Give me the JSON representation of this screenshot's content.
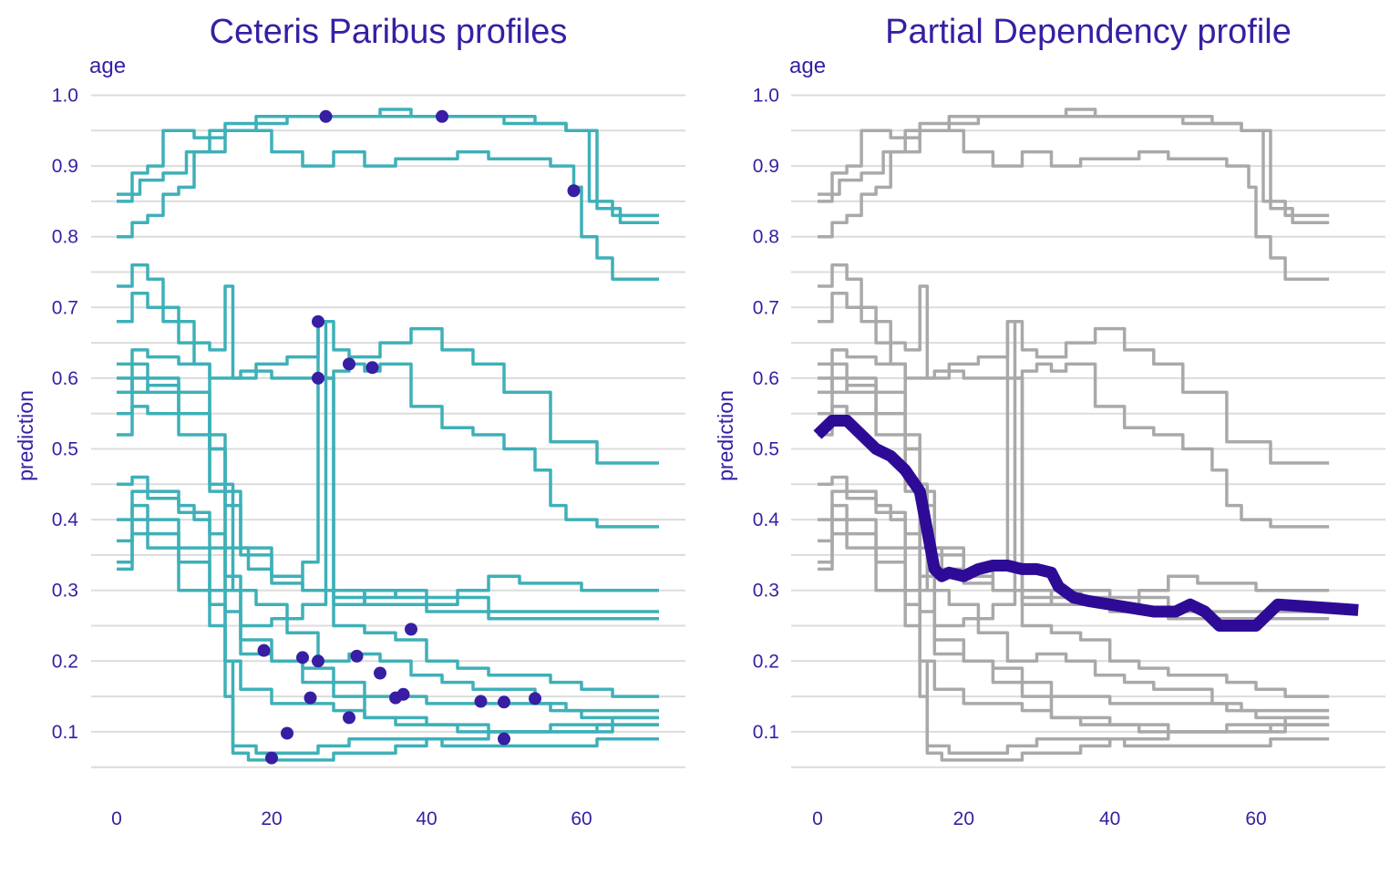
{
  "colors": {
    "text": "#371ea3",
    "cp_line": "#3eb0b8",
    "observation": "#371ea3",
    "pd_background": "#a9a9a9",
    "pd_line": "#2e0b96",
    "grid": "#dcdcdc"
  },
  "chart_data": [
    {
      "type": "line",
      "title": "Ceteris Paribus profiles",
      "facet_label": "age",
      "xlabel": "",
      "ylabel": "prediction",
      "xlim": [
        -3,
        70
      ],
      "ylim": [
        0.05,
        1.0
      ],
      "x_ticks": [
        0,
        20,
        40,
        60
      ],
      "y_ticks": [
        0.1,
        0.2,
        0.3,
        0.4,
        0.5,
        0.6,
        0.7,
        0.8,
        0.9,
        1.0
      ],
      "grid": true,
      "series": [
        {
          "x": [
            0,
            2,
            4,
            6,
            8,
            10,
            14,
            18,
            22,
            26,
            30,
            34,
            38,
            42,
            46,
            50,
            54,
            58,
            60,
            61,
            64,
            70
          ],
          "y": [
            0.85,
            0.89,
            0.9,
            0.95,
            0.95,
            0.94,
            0.96,
            0.97,
            0.97,
            0.97,
            0.97,
            0.97,
            0.97,
            0.97,
            0.97,
            0.96,
            0.96,
            0.95,
            0.95,
            0.85,
            0.83,
            0.83
          ]
        },
        {
          "x": [
            0,
            2,
            4,
            6,
            8,
            10,
            14,
            18,
            22,
            26,
            30,
            34,
            38,
            42,
            46,
            50,
            54,
            58,
            60,
            62,
            65,
            70
          ],
          "y": [
            0.8,
            0.82,
            0.83,
            0.86,
            0.87,
            0.92,
            0.95,
            0.96,
            0.97,
            0.97,
            0.97,
            0.98,
            0.97,
            0.97,
            0.97,
            0.97,
            0.96,
            0.95,
            0.95,
            0.84,
            0.82,
            0.82
          ]
        },
        {
          "x": [
            0,
            3,
            6,
            9,
            12,
            16,
            20,
            24,
            28,
            32,
            36,
            40,
            44,
            48,
            52,
            56,
            59,
            60,
            62,
            64,
            70
          ],
          "y": [
            0.86,
            0.88,
            0.89,
            0.92,
            0.95,
            0.95,
            0.92,
            0.9,
            0.92,
            0.9,
            0.91,
            0.91,
            0.92,
            0.91,
            0.91,
            0.9,
            0.87,
            0.8,
            0.77,
            0.74,
            0.74
          ]
        },
        {
          "x": [
            0,
            2,
            4,
            8,
            12,
            14,
            15,
            18,
            22,
            26,
            28,
            30,
            34,
            38,
            42,
            46,
            50,
            56,
            62,
            70
          ],
          "y": [
            0.68,
            0.72,
            0.7,
            0.65,
            0.64,
            0.73,
            0.6,
            0.62,
            0.63,
            0.68,
            0.64,
            0.63,
            0.65,
            0.67,
            0.64,
            0.62,
            0.58,
            0.51,
            0.48,
            0.48
          ]
        },
        {
          "x": [
            0,
            2,
            4,
            8,
            12,
            16,
            20,
            24,
            28,
            30,
            32,
            34,
            38,
            42,
            46,
            50,
            54,
            56,
            58,
            62,
            70
          ],
          "y": [
            0.62,
            0.64,
            0.63,
            0.62,
            0.6,
            0.61,
            0.6,
            0.6,
            0.61,
            0.62,
            0.61,
            0.62,
            0.56,
            0.53,
            0.52,
            0.5,
            0.47,
            0.42,
            0.4,
            0.39,
            0.39
          ]
        },
        {
          "x": [
            0,
            2,
            4,
            6,
            10,
            12,
            14,
            17,
            20,
            24,
            26,
            27,
            28,
            32,
            36,
            40,
            44,
            48,
            52,
            56,
            60,
            64,
            70
          ],
          "y": [
            0.73,
            0.76,
            0.74,
            0.68,
            0.62,
            0.52,
            0.36,
            0.33,
            0.32,
            0.34,
            0.68,
            0.6,
            0.3,
            0.29,
            0.3,
            0.29,
            0.3,
            0.32,
            0.31,
            0.31,
            0.3,
            0.3,
            0.3
          ]
        },
        {
          "x": [
            0,
            2,
            4,
            8,
            12,
            14,
            16,
            20,
            24,
            27,
            28,
            32,
            36,
            40,
            44,
            48,
            52,
            56,
            60,
            64,
            70
          ],
          "y": [
            0.58,
            0.62,
            0.6,
            0.58,
            0.5,
            0.32,
            0.25,
            0.26,
            0.28,
            0.6,
            0.25,
            0.24,
            0.23,
            0.2,
            0.19,
            0.18,
            0.18,
            0.17,
            0.16,
            0.15,
            0.15
          ]
        },
        {
          "x": [
            0,
            2,
            4,
            8,
            12,
            15,
            18,
            22,
            26,
            30,
            34,
            38,
            42,
            46,
            50,
            54,
            58,
            62,
            70
          ],
          "y": [
            0.52,
            0.56,
            0.55,
            0.52,
            0.45,
            0.3,
            0.28,
            0.24,
            0.2,
            0.21,
            0.2,
            0.18,
            0.17,
            0.16,
            0.16,
            0.14,
            0.13,
            0.13,
            0.13
          ]
        },
        {
          "x": [
            0,
            2,
            4,
            8,
            12,
            16,
            20,
            24,
            28,
            32,
            36,
            40,
            44,
            48,
            52,
            56,
            60,
            63,
            70
          ],
          "y": [
            0.6,
            0.58,
            0.59,
            0.55,
            0.44,
            0.35,
            0.31,
            0.3,
            0.29,
            0.28,
            0.28,
            0.27,
            0.27,
            0.26,
            0.26,
            0.26,
            0.26,
            0.26,
            0.26
          ]
        },
        {
          "x": [
            0,
            2,
            4,
            8,
            12,
            14,
            16,
            20,
            24,
            28,
            32,
            36,
            40,
            44,
            48,
            52,
            56,
            60,
            64,
            70
          ],
          "y": [
            0.55,
            0.6,
            0.58,
            0.55,
            0.5,
            0.42,
            0.36,
            0.32,
            0.3,
            0.28,
            0.3,
            0.29,
            0.28,
            0.29,
            0.27,
            0.27,
            0.27,
            0.27,
            0.27,
            0.27
          ]
        },
        {
          "x": [
            0,
            2,
            4,
            8,
            10,
            12,
            14,
            16,
            20,
            24,
            28,
            32,
            36,
            40,
            44,
            48,
            52,
            56,
            60,
            64,
            70
          ],
          "y": [
            0.45,
            0.46,
            0.44,
            0.42,
            0.4,
            0.36,
            0.27,
            0.21,
            0.2,
            0.19,
            0.17,
            0.15,
            0.15,
            0.14,
            0.14,
            0.14,
            0.14,
            0.13,
            0.12,
            0.12,
            0.12
          ]
        },
        {
          "x": [
            0,
            2,
            4,
            8,
            12,
            14,
            16,
            20,
            24,
            28,
            32,
            36,
            40,
            44,
            48,
            52,
            56,
            60,
            62,
            70
          ],
          "y": [
            0.4,
            0.44,
            0.43,
            0.41,
            0.38,
            0.3,
            0.23,
            0.2,
            0.17,
            0.15,
            0.12,
            0.11,
            0.11,
            0.1,
            0.1,
            0.1,
            0.1,
            0.1,
            0.11,
            0.11
          ]
        },
        {
          "x": [
            0,
            2,
            4,
            8,
            12,
            14,
            15,
            18,
            22,
            26,
            30,
            34,
            38,
            42,
            46,
            50,
            54,
            58,
            62,
            70
          ],
          "y": [
            0.37,
            0.42,
            0.4,
            0.36,
            0.3,
            0.2,
            0.08,
            0.07,
            0.07,
            0.08,
            0.09,
            0.09,
            0.09,
            0.08,
            0.08,
            0.08,
            0.08,
            0.08,
            0.09,
            0.09
          ]
        },
        {
          "x": [
            0,
            2,
            4,
            8,
            12,
            14,
            15,
            17,
            20,
            24,
            28,
            32,
            36,
            40,
            44,
            48,
            52,
            56,
            60,
            64,
            70
          ],
          "y": [
            0.34,
            0.38,
            0.36,
            0.3,
            0.25,
            0.15,
            0.07,
            0.06,
            0.06,
            0.06,
            0.07,
            0.07,
            0.08,
            0.09,
            0.09,
            0.1,
            0.1,
            0.11,
            0.11,
            0.12,
            0.12
          ]
        },
        {
          "x": [
            0,
            2,
            4,
            8,
            12,
            14,
            16,
            20,
            24,
            28,
            32,
            36,
            40,
            44,
            48,
            52,
            56,
            60,
            64,
            70
          ],
          "y": [
            0.33,
            0.4,
            0.38,
            0.34,
            0.28,
            0.2,
            0.16,
            0.14,
            0.14,
            0.13,
            0.12,
            0.12,
            0.11,
            0.11,
            0.1,
            0.1,
            0.1,
            0.1,
            0.11,
            0.11
          ]
        }
      ],
      "observations": [
        {
          "x": 27,
          "y": 0.97
        },
        {
          "x": 42,
          "y": 0.97
        },
        {
          "x": 59,
          "y": 0.865
        },
        {
          "x": 26,
          "y": 0.68
        },
        {
          "x": 26,
          "y": 0.6
        },
        {
          "x": 30,
          "y": 0.62
        },
        {
          "x": 33,
          "y": 0.615
        },
        {
          "x": 38,
          "y": 0.245
        },
        {
          "x": 19,
          "y": 0.215
        },
        {
          "x": 24,
          "y": 0.205
        },
        {
          "x": 26,
          "y": 0.2
        },
        {
          "x": 31,
          "y": 0.207
        },
        {
          "x": 34,
          "y": 0.183
        },
        {
          "x": 25,
          "y": 0.148
        },
        {
          "x": 36,
          "y": 0.148
        },
        {
          "x": 37,
          "y": 0.153
        },
        {
          "x": 47,
          "y": 0.143
        },
        {
          "x": 50,
          "y": 0.142
        },
        {
          "x": 54,
          "y": 0.147
        },
        {
          "x": 22,
          "y": 0.098
        },
        {
          "x": 30,
          "y": 0.12
        },
        {
          "x": 50,
          "y": 0.09
        },
        {
          "x": 20,
          "y": 0.063
        }
      ]
    },
    {
      "type": "line",
      "title": "Partial Dependency profile",
      "facet_label": "age",
      "xlabel": "",
      "ylabel": "prediction",
      "xlim": [
        -3,
        75
      ],
      "ylim": [
        0.05,
        1.0
      ],
      "x_ticks": [
        0,
        20,
        40,
        60
      ],
      "y_ticks": [
        0.1,
        0.2,
        0.3,
        0.4,
        0.5,
        0.6,
        0.7,
        0.8,
        0.9,
        1.0
      ],
      "grid": true,
      "series": [
        {
          "x": [
            0,
            2,
            4,
            6,
            8,
            10,
            12,
            14,
            16,
            17,
            18,
            20,
            22,
            24,
            26,
            28,
            30,
            32,
            33,
            35,
            37,
            40,
            43,
            46,
            49,
            51,
            53,
            55,
            60,
            63,
            70,
            74
          ],
          "y": [
            0.52,
            0.54,
            0.54,
            0.52,
            0.5,
            0.49,
            0.47,
            0.44,
            0.33,
            0.32,
            0.325,
            0.32,
            0.33,
            0.335,
            0.335,
            0.33,
            0.33,
            0.325,
            0.305,
            0.29,
            0.285,
            0.28,
            0.275,
            0.27,
            0.27,
            0.28,
            0.27,
            0.25,
            0.25,
            0.28,
            0.275,
            0.272
          ]
        }
      ]
    }
  ],
  "legend_note": "",
  "background_series_source": "same as Ceteris Paribus profiles"
}
